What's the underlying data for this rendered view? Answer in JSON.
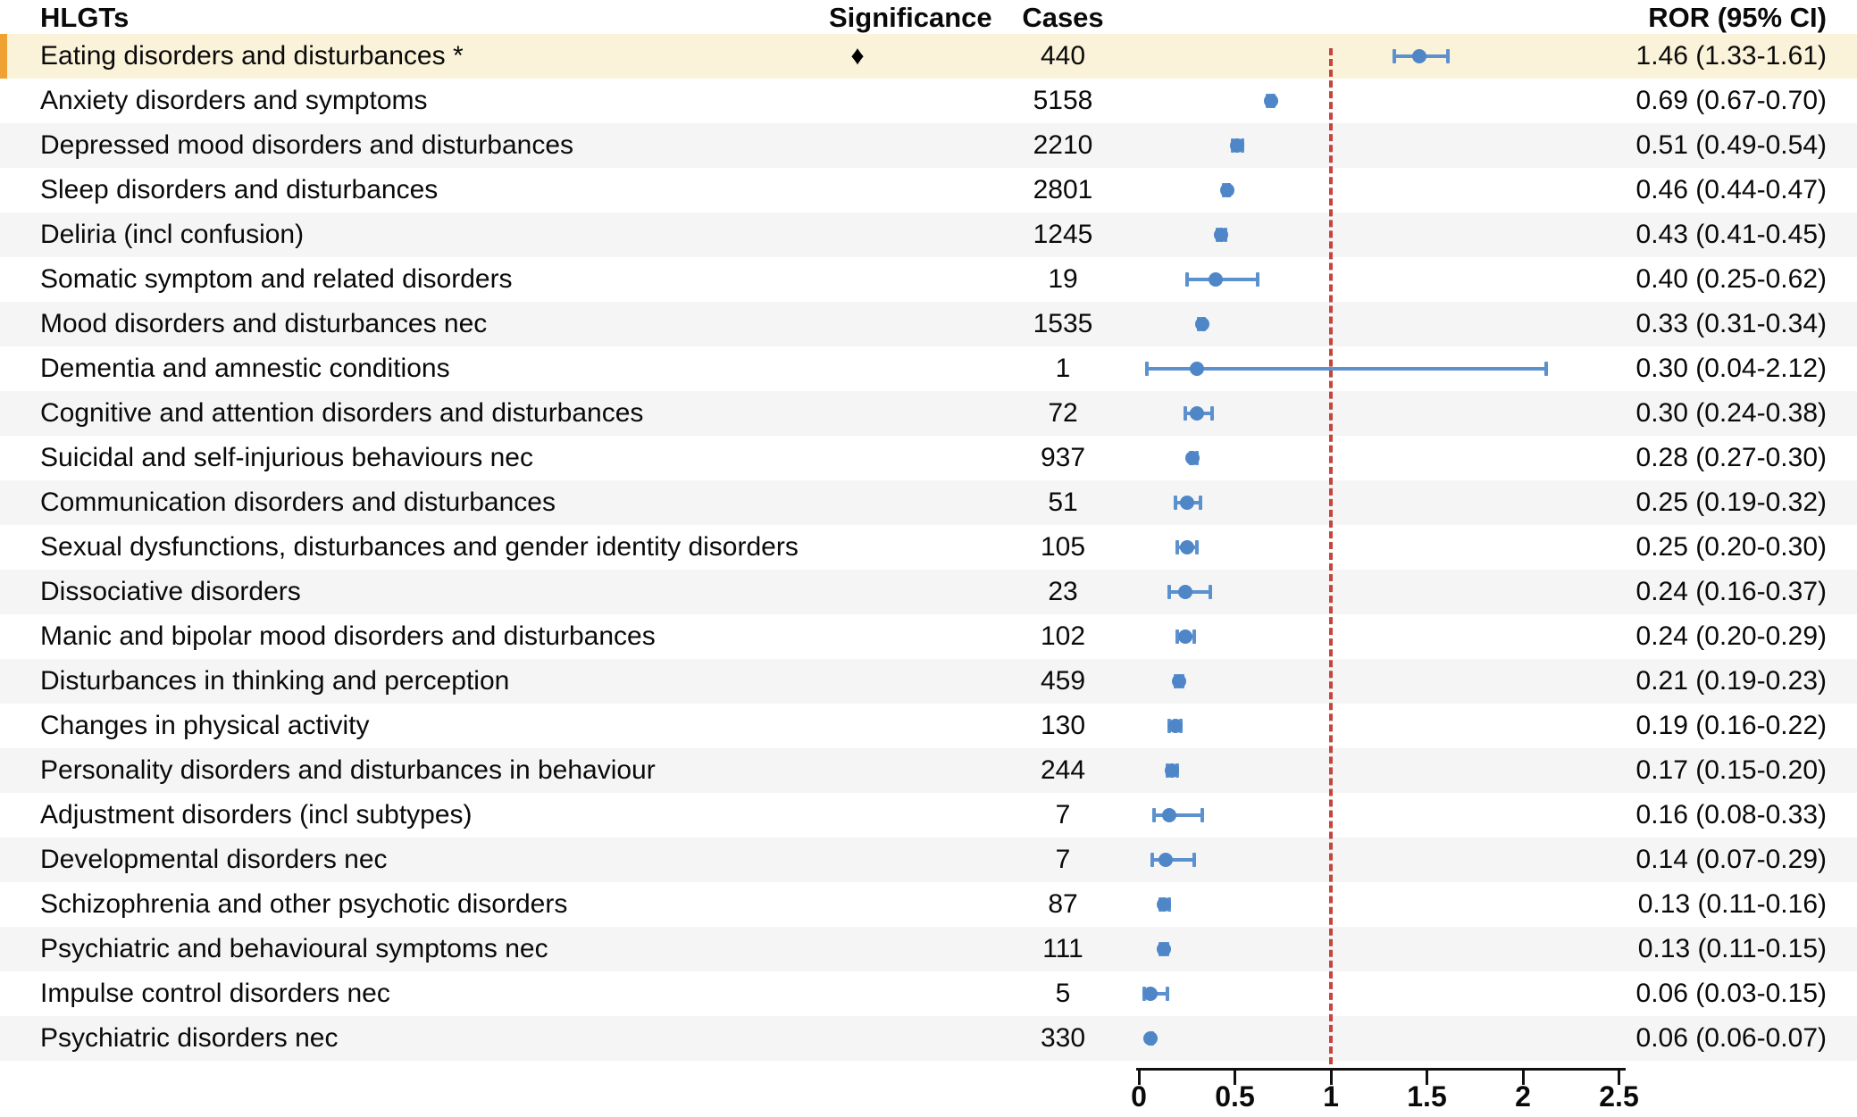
{
  "table": {
    "headers": {
      "hlgts": "HLGTs",
      "significance": "Significance",
      "cases": "Cases",
      "ror": "ROR (95% CI)"
    }
  },
  "colors": {
    "highlight_bg": "#faf3da",
    "highlight_bar": "#efa232",
    "alt_row_bg": "#f5f5f5",
    "marker_blue": "#4e86c8",
    "ci_line_blue": "#5b91cf",
    "reference_red": "#c5443b"
  },
  "chart_data": {
    "type": "forest",
    "xlabel": "",
    "ylabel": "",
    "xlim": [
      0,
      2.5
    ],
    "x_ticks": [
      0,
      0.5,
      1,
      1.5,
      2,
      2.5
    ],
    "reference_line": 1,
    "grid": false,
    "rows": [
      {
        "label": "Eating disorders and disturbances *",
        "significance": "♦",
        "cases": "440",
        "ror": 1.46,
        "ci_low": 1.33,
        "ci_high": 1.61,
        "ror_text": "1.46 (1.33-1.61)",
        "highlight": true
      },
      {
        "label": "Anxiety disorders and symptoms",
        "significance": "",
        "cases": "5158",
        "ror": 0.69,
        "ci_low": 0.67,
        "ci_high": 0.7,
        "ror_text": "0.69 (0.67-0.70)",
        "highlight": false
      },
      {
        "label": "Depressed mood disorders and disturbances",
        "significance": "",
        "cases": "2210",
        "ror": 0.51,
        "ci_low": 0.49,
        "ci_high": 0.54,
        "ror_text": "0.51 (0.49-0.54)",
        "highlight": false
      },
      {
        "label": "Sleep disorders and disturbances",
        "significance": "",
        "cases": "2801",
        "ror": 0.46,
        "ci_low": 0.44,
        "ci_high": 0.47,
        "ror_text": "0.46 (0.44-0.47)",
        "highlight": false
      },
      {
        "label": "Deliria (incl confusion)",
        "significance": "",
        "cases": "1245",
        "ror": 0.43,
        "ci_low": 0.41,
        "ci_high": 0.45,
        "ror_text": "0.43 (0.41-0.45)",
        "highlight": false
      },
      {
        "label": "Somatic symptom and related disorders",
        "significance": "",
        "cases": "19",
        "ror": 0.4,
        "ci_low": 0.25,
        "ci_high": 0.62,
        "ror_text": "0.40 (0.25-0.62)",
        "highlight": false
      },
      {
        "label": "Mood disorders and disturbances nec",
        "significance": "",
        "cases": "1535",
        "ror": 0.33,
        "ci_low": 0.31,
        "ci_high": 0.34,
        "ror_text": "0.33 (0.31-0.34)",
        "highlight": false
      },
      {
        "label": "Dementia and amnestic conditions",
        "significance": "",
        "cases": "1",
        "ror": 0.3,
        "ci_low": 0.04,
        "ci_high": 2.12,
        "ror_text": "0.30 (0.04-2.12)",
        "highlight": false
      },
      {
        "label": "Cognitive and attention disorders and disturbances",
        "significance": "",
        "cases": "72",
        "ror": 0.3,
        "ci_low": 0.24,
        "ci_high": 0.38,
        "ror_text": "0.30 (0.24-0.38)",
        "highlight": false
      },
      {
        "label": "Suicidal and self-injurious behaviours nec",
        "significance": "",
        "cases": "937",
        "ror": 0.28,
        "ci_low": 0.27,
        "ci_high": 0.3,
        "ror_text": "0.28 (0.27-0.30)",
        "highlight": false
      },
      {
        "label": "Communication disorders and disturbances",
        "significance": "",
        "cases": "51",
        "ror": 0.25,
        "ci_low": 0.19,
        "ci_high": 0.32,
        "ror_text": "0.25 (0.19-0.32)",
        "highlight": false
      },
      {
        "label": "Sexual dysfunctions, disturbances and gender identity disorders",
        "significance": "",
        "cases": "105",
        "ror": 0.25,
        "ci_low": 0.2,
        "ci_high": 0.3,
        "ror_text": "0.25 (0.20-0.30)",
        "highlight": false
      },
      {
        "label": "Dissociative disorders",
        "significance": "",
        "cases": "23",
        "ror": 0.24,
        "ci_low": 0.16,
        "ci_high": 0.37,
        "ror_text": "0.24 (0.16-0.37)",
        "highlight": false
      },
      {
        "label": "Manic and bipolar mood disorders and disturbances",
        "significance": "",
        "cases": "102",
        "ror": 0.24,
        "ci_low": 0.2,
        "ci_high": 0.29,
        "ror_text": "0.24 (0.20-0.29)",
        "highlight": false
      },
      {
        "label": "Disturbances in thinking and perception",
        "significance": "",
        "cases": "459",
        "ror": 0.21,
        "ci_low": 0.19,
        "ci_high": 0.23,
        "ror_text": "0.21 (0.19-0.23)",
        "highlight": false
      },
      {
        "label": "Changes in physical activity",
        "significance": "",
        "cases": "130",
        "ror": 0.19,
        "ci_low": 0.16,
        "ci_high": 0.22,
        "ror_text": "0.19 (0.16-0.22)",
        "highlight": false
      },
      {
        "label": "Personality disorders and disturbances in behaviour",
        "significance": "",
        "cases": "244",
        "ror": 0.17,
        "ci_low": 0.15,
        "ci_high": 0.2,
        "ror_text": "0.17 (0.15-0.20)",
        "highlight": false
      },
      {
        "label": "Adjustment disorders (incl subtypes)",
        "significance": "",
        "cases": "7",
        "ror": 0.16,
        "ci_low": 0.08,
        "ci_high": 0.33,
        "ror_text": "0.16 (0.08-0.33)",
        "highlight": false
      },
      {
        "label": "Developmental disorders nec",
        "significance": "",
        "cases": "7",
        "ror": 0.14,
        "ci_low": 0.07,
        "ci_high": 0.29,
        "ror_text": "0.14 (0.07-0.29)",
        "highlight": false
      },
      {
        "label": "Schizophrenia and other psychotic disorders",
        "significance": "",
        "cases": "87",
        "ror": 0.13,
        "ci_low": 0.11,
        "ci_high": 0.16,
        "ror_text": "0.13 (0.11-0.16)",
        "highlight": false
      },
      {
        "label": "Psychiatric and behavioural symptoms nec",
        "significance": "",
        "cases": "111",
        "ror": 0.13,
        "ci_low": 0.11,
        "ci_high": 0.15,
        "ror_text": "0.13 (0.11-0.15)",
        "highlight": false
      },
      {
        "label": "Impulse control disorders nec",
        "significance": "",
        "cases": "5",
        "ror": 0.06,
        "ci_low": 0.03,
        "ci_high": 0.15,
        "ror_text": "0.06 (0.03-0.15)",
        "highlight": false
      },
      {
        "label": "Psychiatric disorders nec",
        "significance": "",
        "cases": "330",
        "ror": 0.06,
        "ci_low": 0.06,
        "ci_high": 0.07,
        "ror_text": "0.06 (0.06-0.07)",
        "highlight": false
      }
    ]
  }
}
